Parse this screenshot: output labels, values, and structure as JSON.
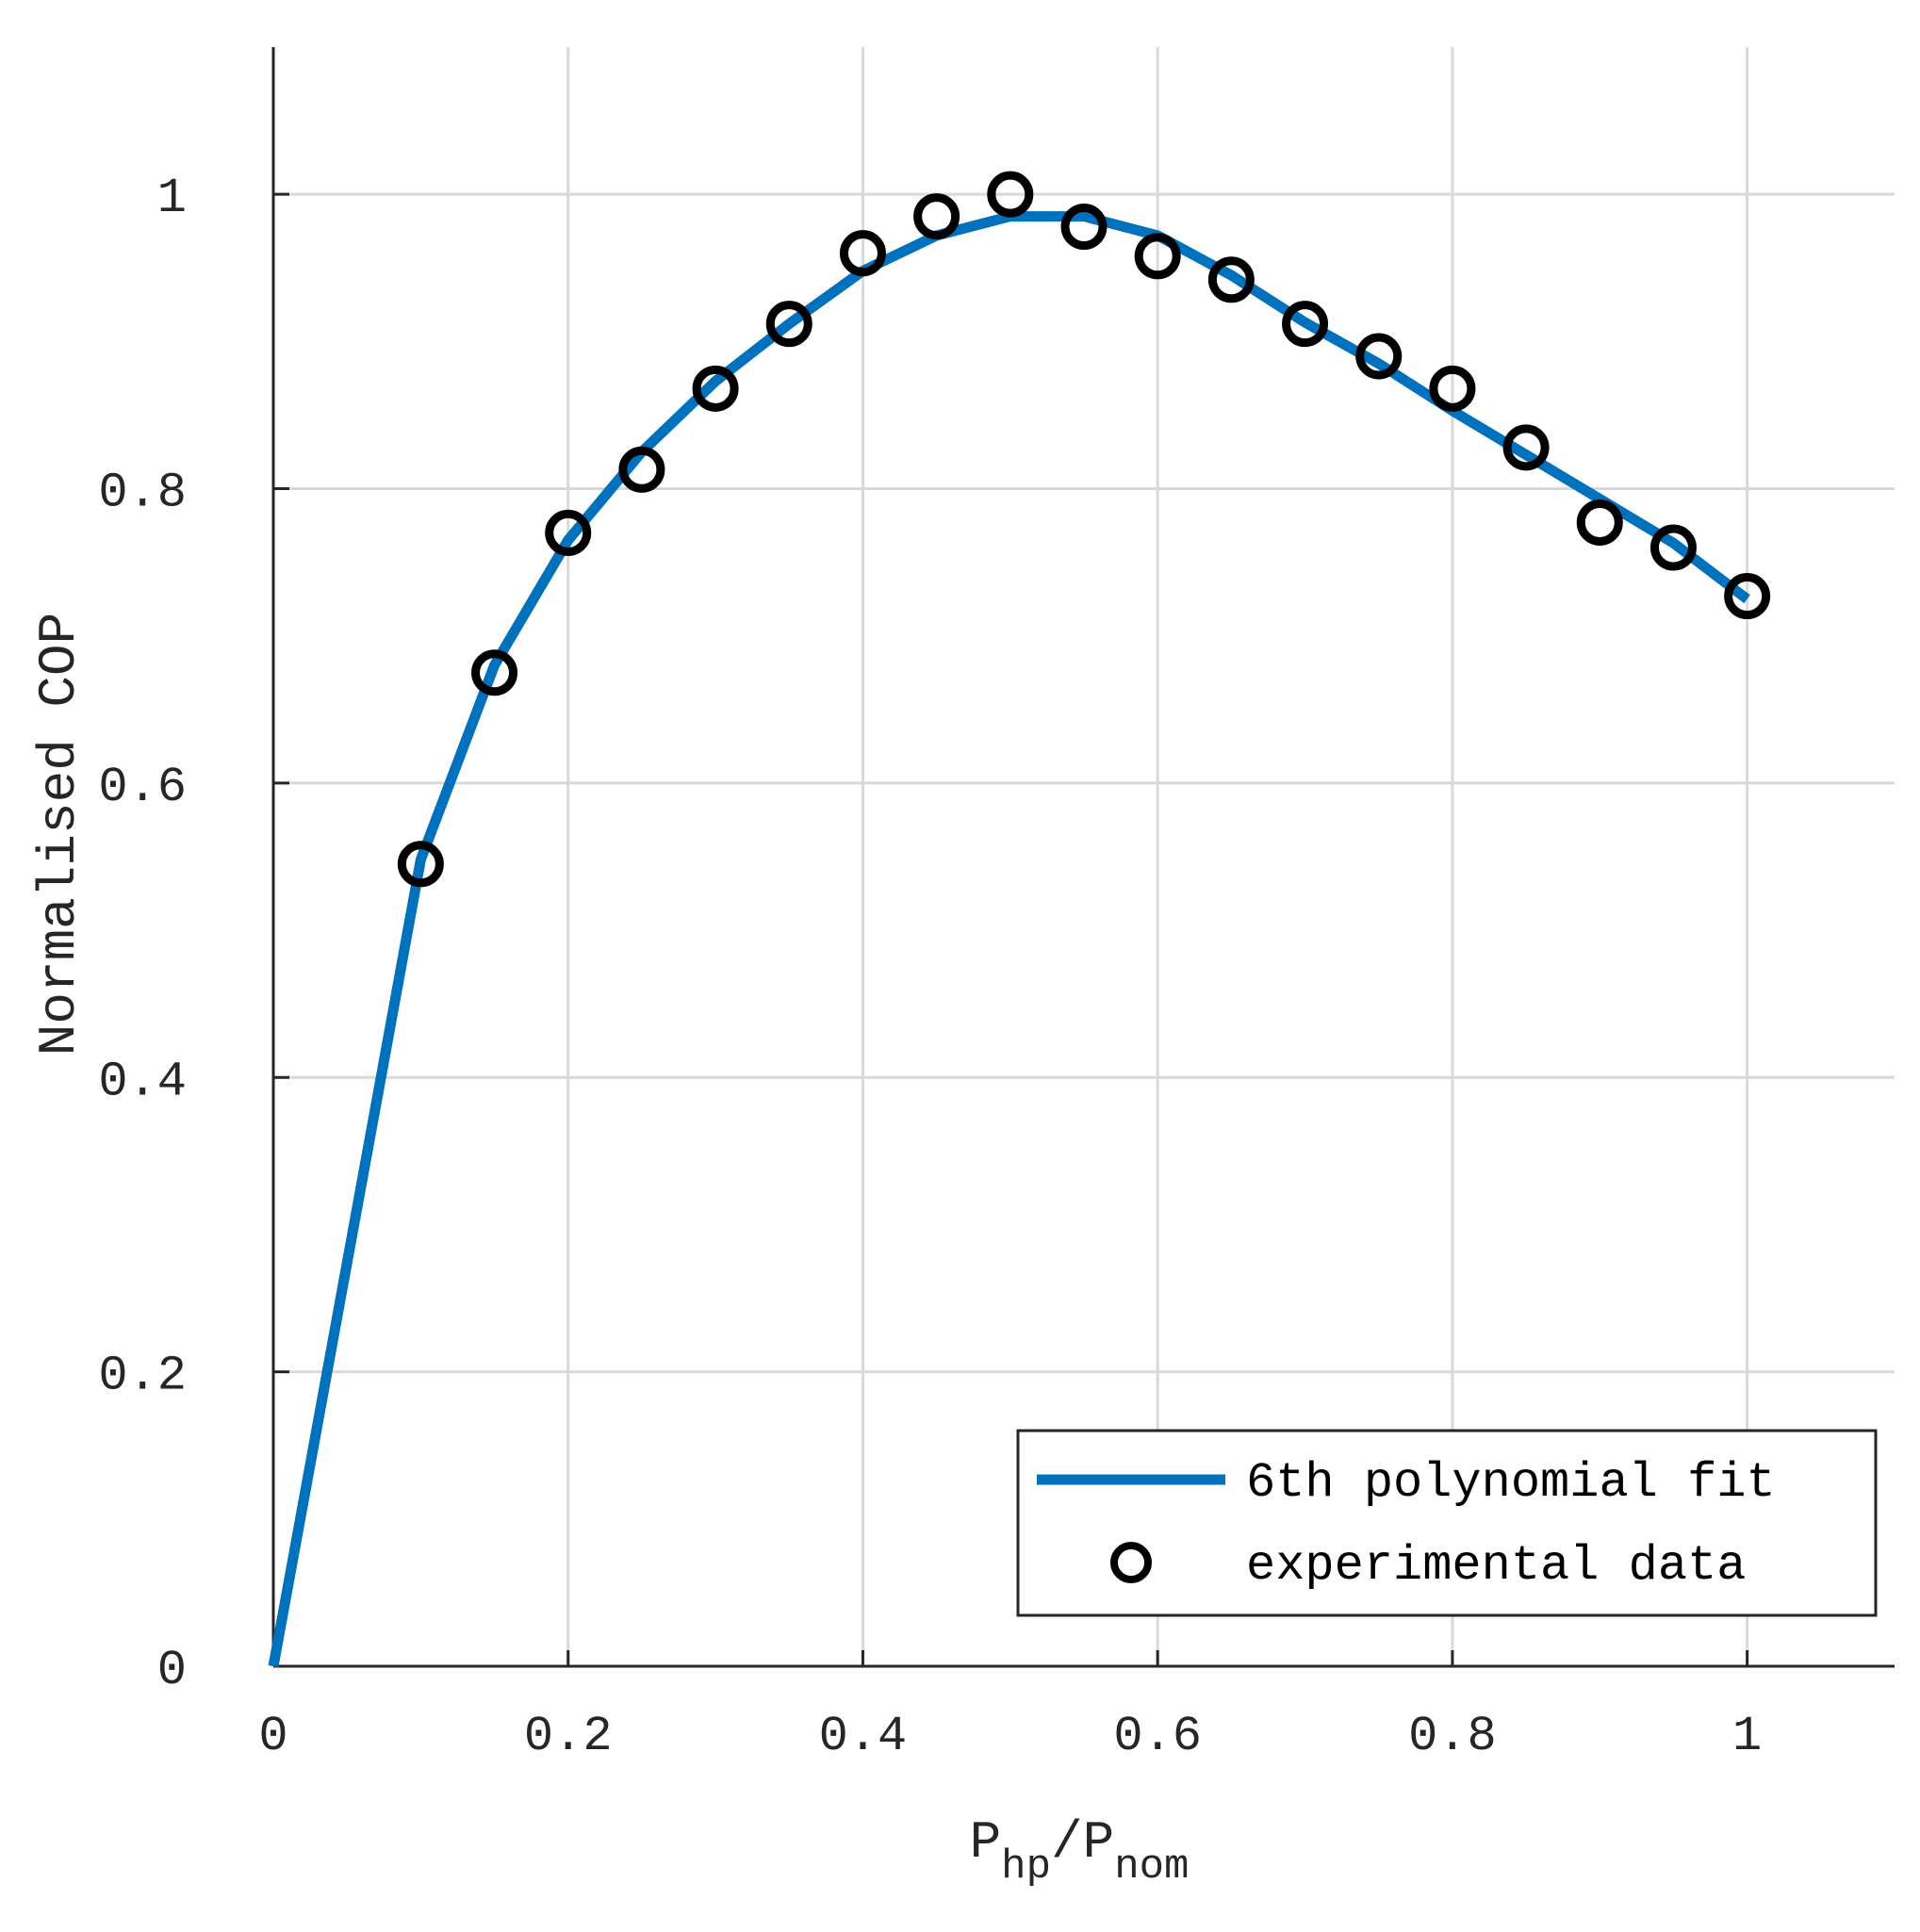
{
  "chart_data": {
    "type": "line",
    "xlabel": {
      "base": "P",
      "sub1": "hp",
      "sep": "/",
      "base2": "P",
      "sub2": "nom"
    },
    "ylabel": "Normalised COP",
    "xlim": [
      0,
      1.1
    ],
    "ylim": [
      0,
      1.1
    ],
    "xticks": [
      0,
      0.2,
      0.4,
      0.6,
      0.8,
      1
    ],
    "xtick_labels": [
      "0",
      "0.2",
      "0.4",
      "0.6",
      "0.8",
      "1"
    ],
    "yticks": [
      0,
      0.2,
      0.4,
      0.6,
      0.8,
      1
    ],
    "ytick_labels": [
      "0",
      "0.2",
      "0.4",
      "0.6",
      "0.8",
      "1"
    ],
    "grid": true,
    "legend_position": "bottom-right",
    "series": [
      {
        "name": "6th polynomial fit",
        "kind": "line",
        "color": "#0072BD",
        "x": [
          0,
          0.1,
          0.15,
          0.2,
          0.25,
          0.3,
          0.35,
          0.4,
          0.45,
          0.5,
          0.55,
          0.6,
          0.65,
          0.7,
          0.75,
          0.8,
          0.85,
          0.9,
          0.95,
          1.0
        ],
        "y": [
          0,
          0.548,
          0.68,
          0.765,
          0.825,
          0.873,
          0.912,
          0.948,
          0.972,
          0.985,
          0.985,
          0.972,
          0.945,
          0.913,
          0.885,
          0.853,
          0.823,
          0.793,
          0.763,
          0.725
        ]
      },
      {
        "name": "experimental data",
        "kind": "scatter",
        "color": "#000000",
        "x": [
          0.1,
          0.15,
          0.2,
          0.25,
          0.3,
          0.35,
          0.4,
          0.45,
          0.5,
          0.55,
          0.6,
          0.65,
          0.7,
          0.75,
          0.8,
          0.85,
          0.9,
          0.95,
          1.0
        ],
        "y": [
          0.545,
          0.675,
          0.77,
          0.813,
          0.868,
          0.912,
          0.96,
          0.985,
          1.0,
          0.978,
          0.958,
          0.942,
          0.912,
          0.89,
          0.868,
          0.828,
          0.777,
          0.76,
          0.727
        ]
      }
    ]
  }
}
